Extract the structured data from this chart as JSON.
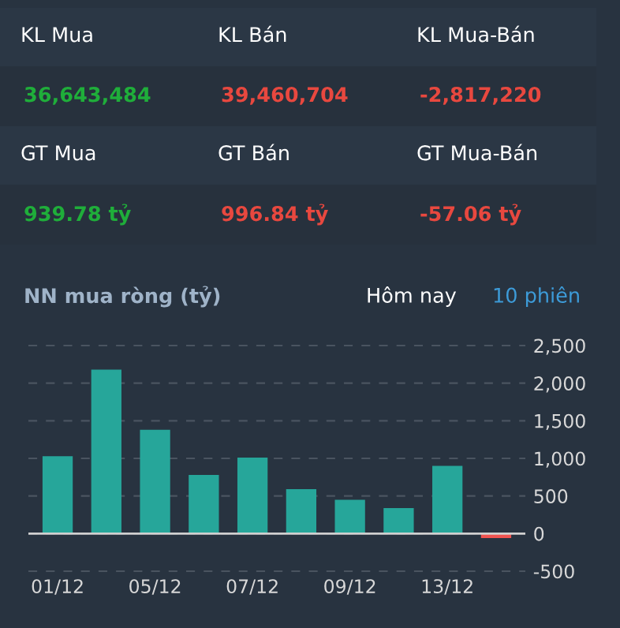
{
  "chart_data": [
    {
      "type": "other",
      "annotations": [
        "KL Mua",
        "KL Bán",
        "KL Mua-Bán",
        "36,643,484",
        "39,460,704",
        "-2,817,220",
        "GT Mua",
        "GT Bán",
        "GT Mua-Bán",
        "939.78 tỷ",
        "996.84 tỷ",
        "-57.06 tỷ"
      ],
      "colors": [
        "#ffffff",
        "#ffffff",
        "#ffffff",
        "#1fae3a",
        "#e8483f",
        "#e8483f",
        "#ffffff",
        "#ffffff",
        "#ffffff",
        "#1fae3a",
        "#e8483f",
        "#e8483f"
      ]
    },
    {
      "type": "bar",
      "title": "NN mua ròng (tỷ)",
      "annotations": [
        "Hôm nay",
        "10 phiên"
      ],
      "categories": [
        "01/12",
        null,
        "05/12",
        null,
        "07/12",
        null,
        "09/12",
        null,
        "13/12",
        null
      ],
      "values": [
        1030,
        2180,
        1380,
        780,
        1010,
        590,
        450,
        340,
        900,
        -60
      ],
      "colors": [
        "#26a69a",
        "#26a69a",
        "#26a69a",
        "#26a69a",
        "#26a69a",
        "#26a69a",
        "#26a69a",
        "#26a69a",
        "#26a69a",
        "#ef5350"
      ],
      "ylim": [
        -500,
        2500
      ],
      "yticks": [
        {
          "value": -500,
          "label": "-500"
        },
        0,
        500,
        {
          "value": 1000,
          "label": "1,000"
        },
        {
          "value": 1500,
          "label": "1,500"
        },
        {
          "value": 2000,
          "label": "2,000"
        },
        {
          "value": 2500,
          "label": "2,500"
        }
      ],
      "ref_lines": [
        {
          "axis": "y",
          "value": 0,
          "color": "#d0d0d0"
        }
      ],
      "grid": "y"
    }
  ]
}
